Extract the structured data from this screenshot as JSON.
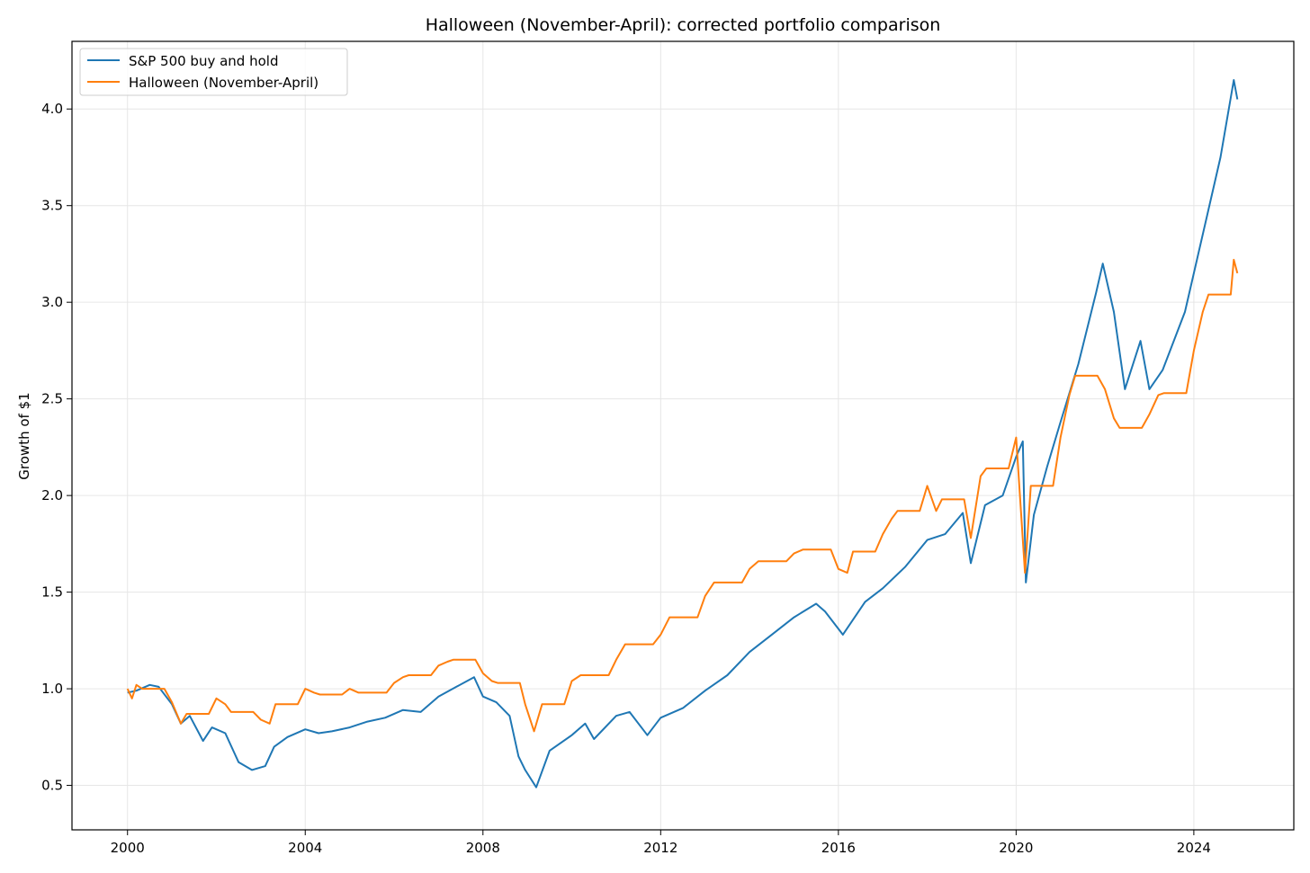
{
  "chart_data": {
    "type": "line",
    "title": "Halloween (November-April): corrected portfolio comparison",
    "xlabel": "",
    "ylabel": "Growth of $1",
    "xlim": [
      1998.75,
      2026.25
    ],
    "ylim": [
      0.27,
      4.35
    ],
    "xticks": [
      2000,
      2004,
      2008,
      2012,
      2016,
      2020,
      2024
    ],
    "xtick_labels": [
      "2000",
      "2004",
      "2008",
      "2012",
      "2016",
      "2020",
      "2024"
    ],
    "yticks": [
      0.5,
      1.0,
      1.5,
      2.0,
      2.5,
      3.0,
      3.5,
      4.0
    ],
    "ytick_labels": [
      "0.5",
      "1.0",
      "1.5",
      "2.0",
      "2.5",
      "3.0",
      "3.5",
      "4.0"
    ],
    "grid": true,
    "legend_position": "top-left",
    "series": [
      {
        "name": "S&P 500 buy and hold",
        "color": "#1f77b4",
        "x": [
          2000.0,
          2000.2,
          2000.5,
          2000.7,
          2001.0,
          2001.2,
          2001.4,
          2001.7,
          2001.9,
          2002.2,
          2002.5,
          2002.8,
          2003.1,
          2003.3,
          2003.6,
          2004.0,
          2004.3,
          2004.6,
          2005.0,
          2005.4,
          2005.8,
          2006.2,
          2006.6,
          2007.0,
          2007.4,
          2007.8,
          2008.0,
          2008.3,
          2008.6,
          2008.8,
          2008.95,
          2009.2,
          2009.5,
          2010.0,
          2010.3,
          2010.5,
          2011.0,
          2011.3,
          2011.7,
          2012.0,
          2012.5,
          2013.0,
          2013.5,
          2014.0,
          2014.5,
          2015.0,
          2015.5,
          2015.7,
          2016.1,
          2016.6,
          2017.0,
          2017.5,
          2018.0,
          2018.4,
          2018.8,
          2018.98,
          2019.3,
          2019.7,
          2020.0,
          2020.15,
          2020.22,
          2020.4,
          2020.7,
          2021.0,
          2021.4,
          2021.8,
          2021.95,
          2022.2,
          2022.45,
          2022.8,
          2023.0,
          2023.3,
          2023.8,
          2024.0,
          2024.3,
          2024.6,
          2024.9,
          2024.98
        ],
        "y": [
          0.98,
          0.99,
          1.02,
          1.01,
          0.92,
          0.82,
          0.86,
          0.73,
          0.8,
          0.77,
          0.62,
          0.58,
          0.6,
          0.7,
          0.75,
          0.79,
          0.77,
          0.78,
          0.8,
          0.83,
          0.85,
          0.89,
          0.88,
          0.96,
          1.01,
          1.06,
          0.96,
          0.93,
          0.86,
          0.65,
          0.58,
          0.49,
          0.68,
          0.76,
          0.82,
          0.74,
          0.86,
          0.88,
          0.76,
          0.85,
          0.9,
          0.99,
          1.07,
          1.19,
          1.28,
          1.37,
          1.44,
          1.4,
          1.28,
          1.45,
          1.52,
          1.63,
          1.77,
          1.8,
          1.91,
          1.65,
          1.95,
          2.0,
          2.2,
          2.28,
          1.55,
          1.9,
          2.15,
          2.38,
          2.68,
          3.05,
          3.2,
          2.95,
          2.55,
          2.8,
          2.55,
          2.65,
          2.95,
          3.15,
          3.45,
          3.75,
          4.15,
          4.05
        ]
      },
      {
        "name": "Halloween (November-April)",
        "color": "#ff7f0e",
        "x": [
          2000.0,
          2000.1,
          2000.2,
          2000.33,
          2000.83,
          2001.0,
          2001.2,
          2001.33,
          2001.83,
          2002.0,
          2002.2,
          2002.33,
          2002.83,
          2003.0,
          2003.2,
          2003.33,
          2003.83,
          2004.0,
          2004.2,
          2004.33,
          2004.83,
          2005.0,
          2005.2,
          2005.33,
          2005.83,
          2006.0,
          2006.2,
          2006.33,
          2006.83,
          2007.0,
          2007.2,
          2007.33,
          2007.83,
          2008.0,
          2008.2,
          2008.33,
          2008.83,
          2008.95,
          2009.15,
          2009.33,
          2009.83,
          2010.0,
          2010.2,
          2010.33,
          2010.83,
          2011.0,
          2011.2,
          2011.33,
          2011.83,
          2012.0,
          2012.2,
          2012.33,
          2012.83,
          2013.0,
          2013.2,
          2013.33,
          2013.83,
          2014.0,
          2014.2,
          2014.33,
          2014.83,
          2015.0,
          2015.2,
          2015.33,
          2015.83,
          2016.0,
          2016.2,
          2016.33,
          2016.83,
          2017.0,
          2017.2,
          2017.33,
          2017.83,
          2018.0,
          2018.2,
          2018.33,
          2018.83,
          2018.98,
          2019.2,
          2019.33,
          2019.83,
          2020.0,
          2020.2,
          2020.33,
          2020.83,
          2021.0,
          2021.2,
          2021.33,
          2021.83,
          2022.0,
          2022.2,
          2022.33,
          2022.83,
          2023.0,
          2023.2,
          2023.33,
          2023.83,
          2024.0,
          2024.2,
          2024.33,
          2024.83,
          2024.9,
          2024.98
        ],
        "y": [
          1.0,
          0.95,
          1.02,
          1.0,
          1.0,
          0.93,
          0.82,
          0.87,
          0.87,
          0.95,
          0.92,
          0.88,
          0.88,
          0.84,
          0.82,
          0.92,
          0.92,
          1.0,
          0.98,
          0.97,
          0.97,
          1.0,
          0.98,
          0.98,
          0.98,
          1.03,
          1.06,
          1.07,
          1.07,
          1.12,
          1.14,
          1.15,
          1.15,
          1.08,
          1.04,
          1.03,
          1.03,
          0.92,
          0.78,
          0.92,
          0.92,
          1.04,
          1.07,
          1.07,
          1.07,
          1.15,
          1.23,
          1.23,
          1.23,
          1.28,
          1.37,
          1.37,
          1.37,
          1.48,
          1.55,
          1.55,
          1.55,
          1.62,
          1.66,
          1.66,
          1.66,
          1.7,
          1.72,
          1.72,
          1.72,
          1.62,
          1.6,
          1.71,
          1.71,
          1.8,
          1.88,
          1.92,
          1.92,
          2.05,
          1.92,
          1.98,
          1.98,
          1.78,
          2.1,
          2.14,
          2.14,
          2.3,
          1.6,
          2.05,
          2.05,
          2.3,
          2.52,
          2.62,
          2.62,
          2.55,
          2.4,
          2.35,
          2.35,
          2.42,
          2.52,
          2.53,
          2.53,
          2.75,
          2.95,
          3.04,
          3.04,
          3.22,
          3.15
        ]
      }
    ]
  }
}
